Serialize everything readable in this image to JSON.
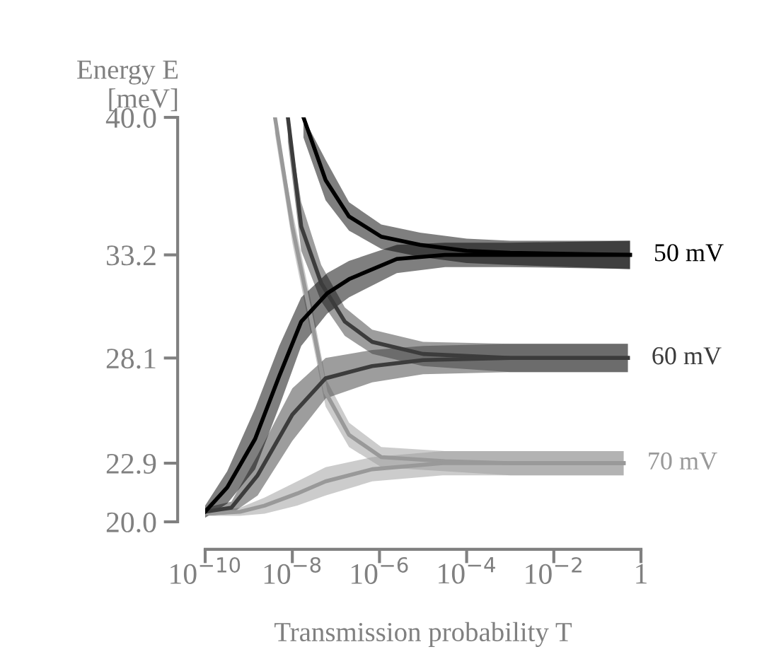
{
  "chart_data": {
    "type": "line",
    "xlabel": "Transmission probability T",
    "ylabel": "Energy E\n[meV]",
    "log": "x",
    "grid": false,
    "legend": false,
    "marker": "none",
    "line_style": "solid",
    "xlim": [
      1e-10,
      1
    ],
    "xticks": [
      {
        "value": 1e-10,
        "label": "10$^{−10}$"
      },
      {
        "value": 1e-08,
        "label": "10$^{−8}$"
      },
      {
        "value": 1e-06,
        "label": "10$^{−6}$"
      },
      {
        "value": 0.0001,
        "label": "10$^{−4}$"
      },
      {
        "value": 0.01,
        "label": "10$^{−2}$"
      },
      1
    ],
    "ylim": [
      20,
      40
    ],
    "yticks": [
      {
        "value": 20,
        "label": "20.0"
      },
      {
        "value": 22.9,
        "label": "22.9"
      },
      {
        "value": 28.1,
        "label": "28.1"
      },
      {
        "value": 33.2,
        "label": "33.2"
      },
      {
        "value": 40,
        "label": "40.0"
      }
    ],
    "series": [
      {
        "color": "#999999",
        "x": [
          4e-09,
          1e-08,
          2.8e-08,
          5.8e-08,
          2e-07,
          1.1e-06,
          3.2e-05,
          0.001,
          0.4
        ],
        "values": [
          40,
          34.6,
          29.9,
          26.4,
          24.3,
          23.2,
          23.0,
          22.9,
          22.9
        ],
        "lower": [
          39.2,
          33.8,
          29.1,
          25.7,
          23.7,
          22.7,
          22.5,
          22.3,
          22.3
        ],
        "upper": [
          40,
          35.4,
          30.7,
          27.1,
          24.9,
          23.7,
          23.5,
          23.5,
          23.5
        ]
      },
      {
        "name": "70 mV",
        "color": "#999999",
        "x": [
          1e-10,
          6.3e-10,
          2.3e-09,
          1.3e-08,
          5.8e-08,
          6.8e-07,
          2.8e-05,
          0.001,
          0.4
        ],
        "values": [
          20.4,
          20.5,
          20.8,
          21.4,
          22.0,
          22.6,
          22.9,
          22.9,
          22.9
        ],
        "lower": [
          20.3,
          20.3,
          20.4,
          20.8,
          21.3,
          22.0,
          22.3,
          22.3,
          22.3
        ],
        "upper": [
          20.5,
          20.7,
          21.2,
          22.0,
          22.7,
          23.2,
          23.5,
          23.5,
          23.5
        ]
      },
      {
        "color": "#3c3c3c",
        "x": [
          7.9e-09,
          1.6e-08,
          4.6e-08,
          1.6e-07,
          6.8e-07,
          1e-05,
          0.001,
          0.5
        ],
        "values": [
          40,
          34.6,
          31.8,
          29.9,
          28.9,
          28.3,
          28.1,
          28.1
        ],
        "lower": [
          38.8,
          33.4,
          30.9,
          29.2,
          28.3,
          27.7,
          27.4,
          27.4
        ],
        "upper": [
          40,
          35.8,
          32.7,
          30.6,
          29.5,
          28.9,
          28.8,
          28.8
        ]
      },
      {
        "name": "60 mV",
        "color": "#3c3c3c",
        "x": [
          1e-10,
          4e-10,
          1.6e-09,
          1e-08,
          5.8e-08,
          6.8e-07,
          1e-05,
          0.001,
          0.5
        ],
        "values": [
          20.5,
          20.7,
          22.3,
          25.3,
          27.1,
          27.7,
          28.0,
          28.1,
          28.1
        ],
        "lower": [
          20.3,
          20.4,
          21.3,
          24.0,
          26.1,
          26.9,
          27.3,
          27.4,
          27.4
        ],
        "upper": [
          20.7,
          21.0,
          23.3,
          26.6,
          28.1,
          28.5,
          28.7,
          28.8,
          28.8
        ]
      },
      {
        "color": "#000000",
        "x": [
          1.8e-08,
          5.8e-08,
          2e-07,
          1.1e-06,
          8.5e-06,
          0.0001,
          0.001,
          0.56
        ],
        "values": [
          40,
          36.9,
          35.1,
          34.1,
          33.7,
          33.4,
          33.3,
          33.2
        ],
        "lower": [
          39.0,
          35.9,
          34.4,
          33.5,
          33.1,
          32.8,
          32.7,
          32.5
        ],
        "upper": [
          40,
          37.9,
          35.8,
          34.7,
          34.3,
          34.0,
          33.9,
          33.9
        ]
      },
      {
        "name": "50 mV",
        "color": "#000000",
        "x": [
          1e-10,
          3.2e-10,
          1.4e-09,
          5e-09,
          1.6e-08,
          6.3e-08,
          2e-07,
          2.5e-06,
          3.2e-05,
          0.001,
          0.56
        ],
        "values": [
          20.5,
          21.7,
          24.1,
          27.2,
          29.9,
          31.3,
          32.0,
          33.0,
          33.2,
          33.2,
          33.2
        ],
        "lower": [
          20.2,
          20.9,
          22.6,
          25.7,
          28.7,
          30.3,
          31.1,
          32.3,
          32.6,
          32.6,
          32.5
        ],
        "upper": [
          20.8,
          22.5,
          25.6,
          28.7,
          31.1,
          32.3,
          32.9,
          33.7,
          33.8,
          33.8,
          33.9
        ]
      }
    ]
  }
}
